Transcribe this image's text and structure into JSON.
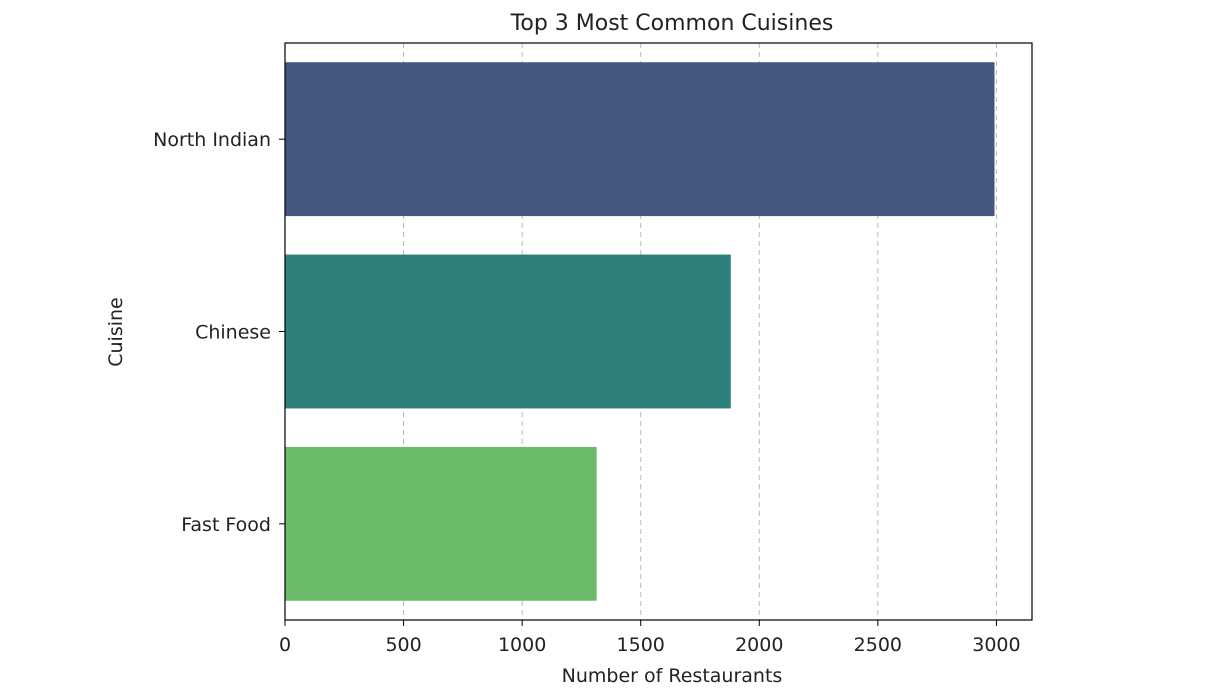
{
  "chart_data": {
    "type": "bar",
    "orientation": "horizontal",
    "title": "Top 3 Most Common Cuisines",
    "xlabel": "Number of Restaurants",
    "ylabel": "Cuisine",
    "categories": [
      "North Indian",
      "Chinese",
      "Fast Food"
    ],
    "values": [
      2992,
      1880,
      1314
    ],
    "colors": [
      "#46577f",
      "#2e807b",
      "#6bbb6b"
    ],
    "xlim": [
      0,
      3150
    ],
    "xticks": [
      0,
      500,
      1000,
      1500,
      2000,
      2500,
      3000
    ],
    "grid": "x-dashed",
    "legend": "none"
  }
}
